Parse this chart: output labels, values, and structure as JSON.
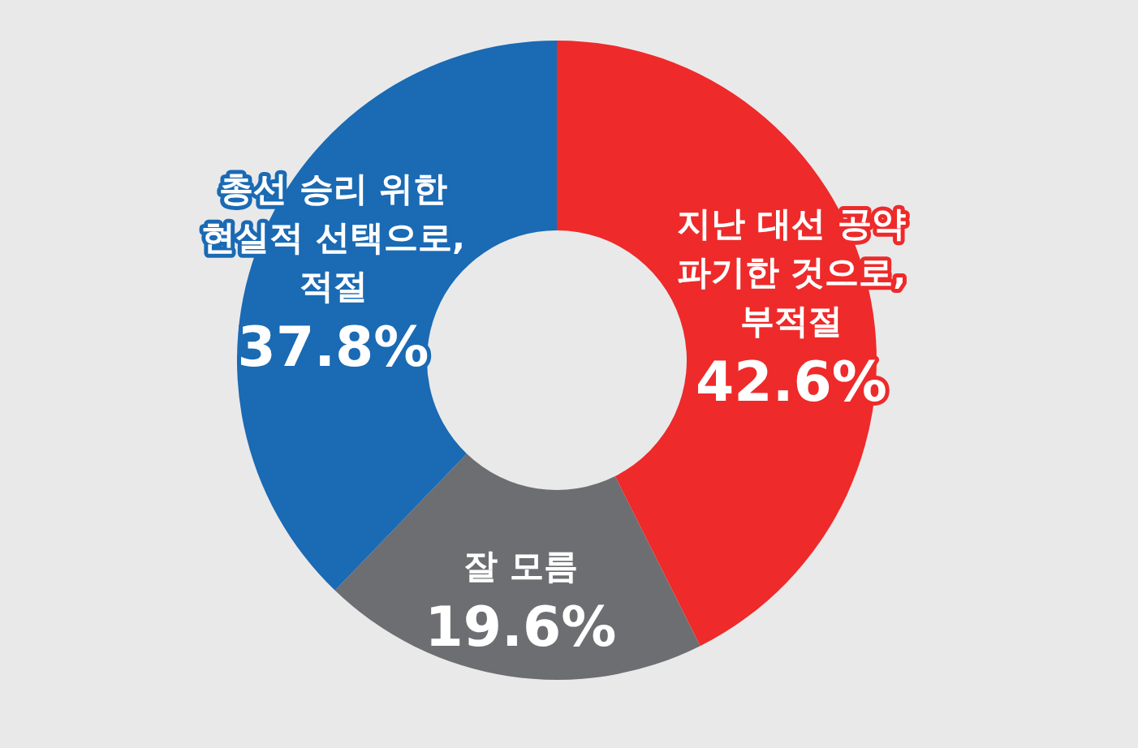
{
  "chart_data": {
    "type": "donut",
    "categories": [
      "지난 대선 공약\n파기한 것으로,\n부적절",
      "잘 모름",
      "총선 승리 위한\n현실적 선택으로,\n적절"
    ],
    "values": [
      42.6,
      19.6,
      37.8
    ],
    "colors": [
      "#ee2a2a",
      "#6d6e71",
      "#1a6ab4"
    ],
    "value_labels": [
      "42.6%",
      "19.6%",
      "37.8%"
    ]
  }
}
